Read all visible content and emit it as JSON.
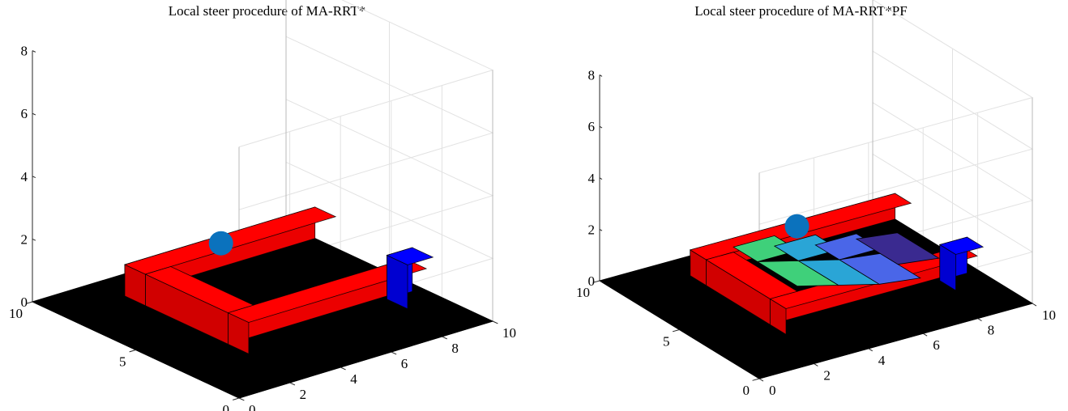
{
  "chart_data": [
    {
      "type": "surface3d",
      "title": "Local steer procedure of MA-RRT*",
      "xlim": [
        0,
        10
      ],
      "ylim": [
        0,
        10
      ],
      "zlim": [
        0,
        8
      ],
      "x_ticks": [
        "0",
        "2",
        "4",
        "6",
        "8",
        "10"
      ],
      "y_ticks": [
        "0",
        "5",
        "10"
      ],
      "z_ticks": [
        "0",
        "2",
        "4",
        "6",
        "8"
      ],
      "grid": true,
      "colors": {
        "floor": "#000000",
        "obstacle": "#ff0000",
        "goal": "#0000ff",
        "agent": "#0b72bd"
      },
      "floor": {
        "x": [
          0,
          10
        ],
        "y": [
          0,
          10
        ],
        "z": 0
      },
      "obstacles": [
        {
          "x": [
            2.5,
            10
          ],
          "y": [
            7.6,
            8.6
          ],
          "z": [
            0,
            1
          ]
        },
        {
          "x": [
            2.5,
            3.5
          ],
          "y": [
            3.6,
            7.6
          ],
          "z": [
            0,
            1
          ]
        },
        {
          "x": [
            2.5,
            9.5
          ],
          "y": [
            2.6,
            3.6
          ],
          "z": [
            0,
            1
          ]
        }
      ],
      "goal_box": {
        "x": [
          8.6,
          9.6
        ],
        "y": [
          2.4,
          3.4
        ],
        "z": [
          0,
          1.4
        ]
      },
      "agent": {
        "x": 6.7,
        "y": 9.1,
        "z": 0.5
      },
      "potential_field": []
    },
    {
      "type": "surface3d",
      "title": "Local steer procedure of MA-RRT*PF",
      "xlim": [
        0,
        10
      ],
      "ylim": [
        0,
        10
      ],
      "zlim": [
        0,
        8
      ],
      "x_ticks": [
        "0",
        "2",
        "4",
        "6",
        "8",
        "10"
      ],
      "y_ticks": [
        "0",
        "5",
        "10"
      ],
      "z_ticks": [
        "0",
        "2",
        "4",
        "6",
        "8"
      ],
      "grid": true,
      "colors": {
        "floor": "#000000",
        "obstacle": "#ff0000",
        "goal": "#0000ff",
        "agent": "#0b72bd"
      },
      "floor": {
        "x": [
          0,
          10
        ],
        "y": [
          0,
          10
        ],
        "z": 0
      },
      "obstacles": [
        {
          "x": [
            2.5,
            10
          ],
          "y": [
            7.6,
            8.6
          ],
          "z": [
            0,
            1
          ]
        },
        {
          "x": [
            2.5,
            3.5
          ],
          "y": [
            3.6,
            7.6
          ],
          "z": [
            0,
            1
          ]
        },
        {
          "x": [
            2.5,
            9.5
          ],
          "y": [
            2.6,
            3.6
          ],
          "z": [
            0,
            1
          ]
        }
      ],
      "goal_box": {
        "x": [
          8.6,
          9.6
        ],
        "y": [
          2.4,
          3.4
        ],
        "z": [
          0,
          1.4
        ]
      },
      "agent": {
        "x": 6.7,
        "y": 9.1,
        "z": 0.5
      },
      "potential_field": [
        {
          "x": [
            3.5,
            5.0
          ],
          "y": [
            3.6,
            6.1
          ],
          "z": [
            0.8,
            1.2
          ],
          "color": "#3fd07a"
        },
        {
          "x": [
            3.5,
            5.0
          ],
          "y": [
            6.1,
            7.6
          ],
          "z": [
            1.2,
            1.2
          ],
          "color": "#3fd07a"
        },
        {
          "x": [
            5.0,
            6.5
          ],
          "y": [
            3.6,
            6.1
          ],
          "z": [
            0.4,
            0.8
          ],
          "color": "#2aa5d6"
        },
        {
          "x": [
            5.0,
            6.5
          ],
          "y": [
            6.1,
            7.6
          ],
          "z": [
            0.8,
            0.8
          ],
          "color": "#2aa5d6"
        },
        {
          "x": [
            6.5,
            8.0
          ],
          "y": [
            3.6,
            6.1
          ],
          "z": [
            0.2,
            0.4
          ],
          "color": "#4a66e8"
        },
        {
          "x": [
            6.5,
            8.0
          ],
          "y": [
            6.1,
            7.6
          ],
          "z": [
            0.4,
            0.4
          ],
          "color": "#4a66e8"
        },
        {
          "x": [
            8.0,
            9.5
          ],
          "y": [
            5.0,
            7.6
          ],
          "z": [
            0.0,
            0.2
          ],
          "color": "#3a2a90"
        }
      ]
    }
  ]
}
